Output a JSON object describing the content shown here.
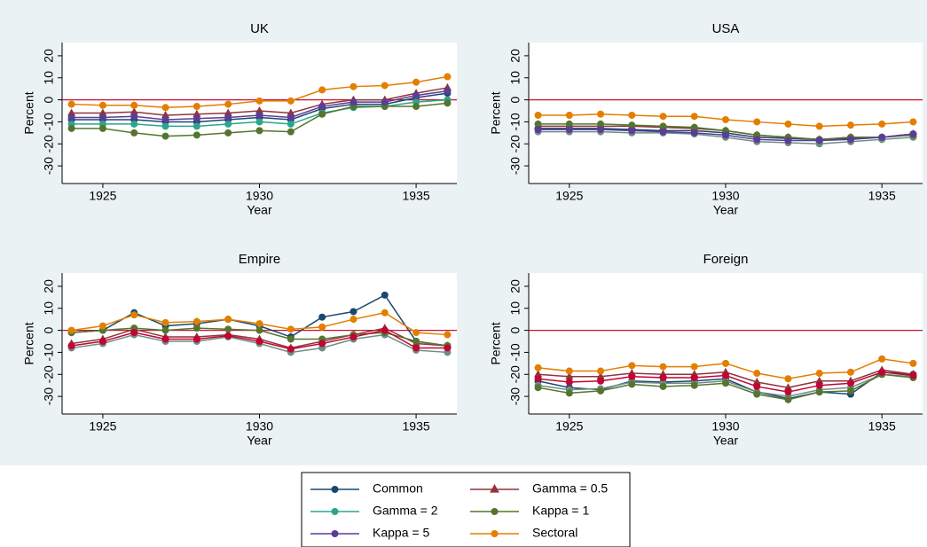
{
  "chart_data": [
    {
      "type": "line",
      "title": "UK",
      "x_label": "Year",
      "y_label": "Percent",
      "x": [
        1924,
        1925,
        1926,
        1927,
        1928,
        1929,
        1930,
        1931,
        1932,
        1933,
        1934,
        1935,
        1936
      ],
      "xlim": [
        1923.7,
        1936.3
      ],
      "xticks": [
        1925,
        1930,
        1935
      ],
      "ylim": [
        -38,
        26
      ],
      "yticks": [
        -30,
        -20,
        -10,
        0,
        10,
        20
      ],
      "reference_line": 0,
      "reference_color": "#c8102e",
      "series": [
        {
          "name": "Common",
          "color": "#1a476f",
          "marker": "circle",
          "values": [
            -9,
            -9,
            -9,
            -10,
            -10,
            -9,
            -8,
            -9,
            -4,
            -2,
            -2,
            1,
            3
          ]
        },
        {
          "name": "Gamma = 0.5",
          "color": "#90353b",
          "marker": "triangle",
          "values": [
            -6,
            -6,
            -5.5,
            -7,
            -6.5,
            -6,
            -5,
            -6,
            -2,
            0,
            0,
            3,
            5.5
          ]
        },
        {
          "name": "Gamma = 2",
          "color": "#2ca58d",
          "marker": "circle",
          "values": [
            -11,
            -11,
            -11,
            -12,
            -12,
            -11,
            -10,
            -11,
            -6,
            -3.5,
            -3,
            -1,
            0
          ]
        },
        {
          "name": "Kappa = 1",
          "color": "#55752f",
          "marker": "circle",
          "values": [
            -13,
            -13,
            -15,
            -16.5,
            -16,
            -15,
            -14,
            -14.5,
            -6.5,
            -3,
            -3,
            -3,
            -1.5
          ]
        },
        {
          "name": "Kappa = 5",
          "color": "#5b3c99",
          "marker": "circle",
          "values": [
            -8,
            -8,
            -7.5,
            -9,
            -8.5,
            -8,
            -7,
            -8,
            -3,
            -1,
            -1,
            2,
            4
          ]
        },
        {
          "name": "Sectoral",
          "color": "#e37e00",
          "marker": "circle",
          "values": [
            -2,
            -2.5,
            -2.5,
            -3.5,
            -3,
            -2,
            -0.5,
            -0.5,
            4.5,
            6,
            6.5,
            8,
            10.5
          ]
        }
      ]
    },
    {
      "type": "line",
      "title": "USA",
      "x_label": "Year",
      "y_label": "Percent",
      "x": [
        1924,
        1925,
        1926,
        1927,
        1928,
        1929,
        1930,
        1931,
        1932,
        1933,
        1934,
        1935,
        1936
      ],
      "xlim": [
        1923.7,
        1936.3
      ],
      "xticks": [
        1925,
        1930,
        1935
      ],
      "ylim": [
        -38,
        26
      ],
      "yticks": [
        -30,
        -20,
        -10,
        0,
        10,
        20
      ],
      "reference_line": 0,
      "reference_color": "#c8102e",
      "series": [
        {
          "name": "Common",
          "color": "#1a476f",
          "marker": "circle",
          "values": [
            -13,
            -13,
            -13,
            -13.5,
            -14,
            -14,
            -15,
            -17,
            -17.5,
            -18,
            -17.5,
            -17,
            -15.5
          ]
        },
        {
          "name": "Gamma = 0.5",
          "color": "#90353b",
          "marker": "triangle",
          "values": [
            -12,
            -12,
            -12,
            -12,
            -12.5,
            -13,
            -14,
            -16,
            -17,
            -18,
            -17,
            -17,
            -15.5
          ]
        },
        {
          "name": "Gamma = 2",
          "color": "#6e8e84",
          "marker": "circle",
          "values": [
            -14.5,
            -14.5,
            -14.5,
            -15,
            -15,
            -15.5,
            -17,
            -19,
            -19.5,
            -20,
            -19,
            -18,
            -17
          ]
        },
        {
          "name": "Kappa = 1",
          "color": "#55752f",
          "marker": "circle",
          "values": [
            -11,
            -11,
            -11,
            -11.5,
            -12,
            -12.5,
            -14,
            -16,
            -17,
            -18,
            -17,
            -17,
            -16
          ]
        },
        {
          "name": "Kappa = 5",
          "color": "#5b3c99",
          "marker": "circle",
          "values": [
            -13.5,
            -13.5,
            -13.5,
            -14,
            -14.5,
            -15,
            -16,
            -18,
            -18.5,
            -18.5,
            -18,
            -17,
            -15.5
          ]
        },
        {
          "name": "Sectoral",
          "color": "#e37e00",
          "marker": "circle",
          "values": [
            -7,
            -7,
            -6.5,
            -7,
            -7.5,
            -7.5,
            -9,
            -10,
            -11,
            -12,
            -11.5,
            -11,
            -10
          ]
        }
      ]
    },
    {
      "type": "line",
      "title": "Empire",
      "x_label": "Year",
      "y_label": "Percent",
      "x": [
        1924,
        1925,
        1926,
        1927,
        1928,
        1929,
        1930,
        1931,
        1932,
        1933,
        1934,
        1935,
        1936
      ],
      "xlim": [
        1923.7,
        1936.3
      ],
      "xticks": [
        1925,
        1930,
        1935
      ],
      "ylim": [
        -38,
        26
      ],
      "yticks": [
        -30,
        -20,
        -10,
        0,
        10,
        20
      ],
      "reference_line": 0,
      "reference_color": "#c8102e",
      "series": [
        {
          "name": "Common",
          "color": "#1a476f",
          "marker": "circle",
          "values": [
            -1,
            0,
            8,
            2,
            3,
            5,
            2,
            -3,
            6,
            8.5,
            16,
            -5,
            -7
          ]
        },
        {
          "name": "Gamma = 0.5",
          "color": "#90353b",
          "marker": "triangle",
          "values": [
            -6,
            -4,
            0.5,
            -3,
            -3,
            -2,
            -4,
            -8,
            -5,
            -2,
            1,
            -6,
            -7
          ]
        },
        {
          "name": "Gamma = 2",
          "color": "#6e8e84",
          "marker": "circle",
          "values": [
            -8,
            -6,
            -2,
            -5,
            -5,
            -3,
            -6,
            -10,
            -8,
            -4,
            -2,
            -9,
            -10
          ]
        },
        {
          "name": "Kappa = 1",
          "color": "#55752f",
          "marker": "circle",
          "values": [
            -1,
            0,
            1,
            0,
            1,
            0.5,
            0,
            -4,
            -4,
            -2,
            -1,
            -5,
            -7
          ]
        },
        {
          "name": "Kappa = 5",
          "color": "#c10534",
          "marker": "circle",
          "values": [
            -7,
            -5,
            -1,
            -4,
            -4,
            -2.5,
            -5,
            -8.5,
            -6,
            -3,
            0,
            -8,
            -8
          ]
        },
        {
          "name": "Sectoral",
          "color": "#e37e00",
          "marker": "circle",
          "values": [
            0,
            2,
            7,
            3.5,
            4,
            5,
            3,
            0.5,
            1.5,
            5,
            8,
            -1,
            -2
          ]
        }
      ]
    },
    {
      "type": "line",
      "title": "Foreign",
      "x_label": "Year",
      "y_label": "Percent",
      "x": [
        1924,
        1925,
        1926,
        1927,
        1928,
        1929,
        1930,
        1931,
        1932,
        1933,
        1934,
        1935,
        1936
      ],
      "xlim": [
        1923.7,
        1936.3
      ],
      "xticks": [
        1925,
        1930,
        1935
      ],
      "ylim": [
        -38,
        26
      ],
      "yticks": [
        -30,
        -20,
        -10,
        0,
        10,
        20
      ],
      "reference_line": 0,
      "reference_color": "#c8102e",
      "series": [
        {
          "name": "Common",
          "color": "#1a476f",
          "marker": "circle",
          "values": [
            -23,
            -26,
            -27,
            -23,
            -23.5,
            -23,
            -22,
            -28,
            -31,
            -28,
            -29,
            -19,
            -20
          ]
        },
        {
          "name": "Gamma = 0.5",
          "color": "#90353b",
          "marker": "triangle",
          "values": [
            -20,
            -21,
            -21,
            -19.5,
            -20,
            -20,
            -19,
            -23.5,
            -26,
            -23,
            -23,
            -18,
            -20
          ]
        },
        {
          "name": "Gamma = 2",
          "color": "#6e8e84",
          "marker": "circle",
          "values": [
            -25,
            -27,
            -26.5,
            -23.5,
            -24,
            -24,
            -23,
            -28,
            -30,
            -27,
            -26,
            -20,
            -21
          ]
        },
        {
          "name": "Kappa = 1",
          "color": "#55752f",
          "marker": "circle",
          "values": [
            -26,
            -28.5,
            -27.5,
            -24.5,
            -25.5,
            -25,
            -24,
            -29,
            -31.5,
            -28,
            -27.5,
            -20,
            -21.5
          ]
        },
        {
          "name": "Kappa = 5",
          "color": "#c10534",
          "marker": "circle",
          "values": [
            -22,
            -23.5,
            -23,
            -21,
            -21.5,
            -21.5,
            -20.5,
            -25.5,
            -28,
            -25,
            -24,
            -19,
            -20.5
          ]
        },
        {
          "name": "Sectoral",
          "color": "#e37e00",
          "marker": "circle",
          "values": [
            -17,
            -18.5,
            -18.5,
            -16,
            -16.5,
            -16.5,
            -15,
            -19.5,
            -22,
            -19.5,
            -19,
            -13,
            -15
          ]
        }
      ]
    }
  ]
}
